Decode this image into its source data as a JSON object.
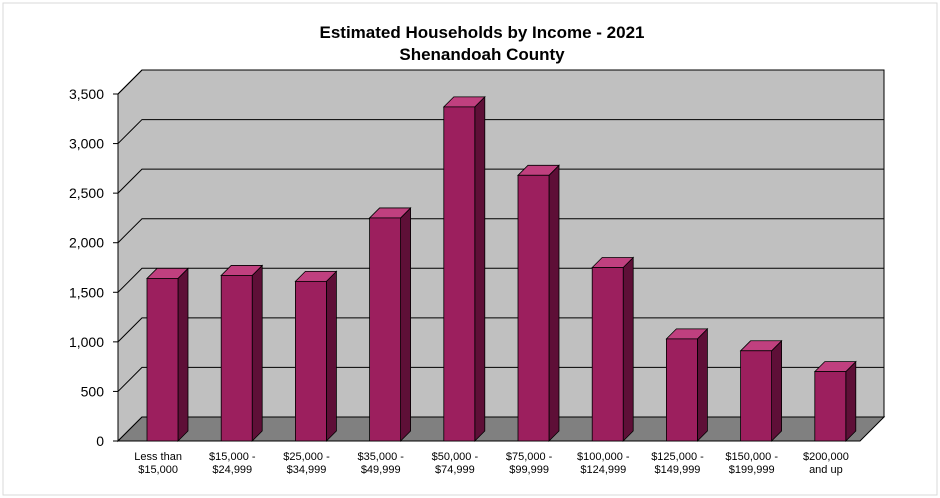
{
  "chart_data": {
    "type": "bar",
    "title": "Estimated Households by Income - 2021",
    "subtitle": "Shenandoah County",
    "categories": [
      [
        "Less than",
        "$15,000"
      ],
      [
        "$15,000 -",
        "$24,999"
      ],
      [
        "$25,000 -",
        "$34,999"
      ],
      [
        "$35,000 -",
        "$49,999"
      ],
      [
        "$50,000 -",
        "$74,999"
      ],
      [
        "$75,000 -",
        "$99,999"
      ],
      [
        "$100,000 -",
        "$124,999"
      ],
      [
        "$125,000 -",
        "$149,999"
      ],
      [
        "$150,000 -",
        "$199,999"
      ],
      [
        "$200,000",
        "and up"
      ]
    ],
    "values": [
      1640,
      1670,
      1610,
      2250,
      3370,
      2680,
      1750,
      1030,
      910,
      700
    ],
    "ylim": [
      0,
      3500
    ],
    "yticks": [
      "0",
      "500",
      "1,000",
      "1,500",
      "2,000",
      "2,500",
      "3,000",
      "3,500"
    ],
    "grid": true,
    "colors": {
      "bar_front": "#9c1f5e",
      "bar_side": "#5e0f37",
      "bar_top": "#c0407f",
      "wall": "#c0c0c0",
      "floor": "#808080"
    }
  }
}
